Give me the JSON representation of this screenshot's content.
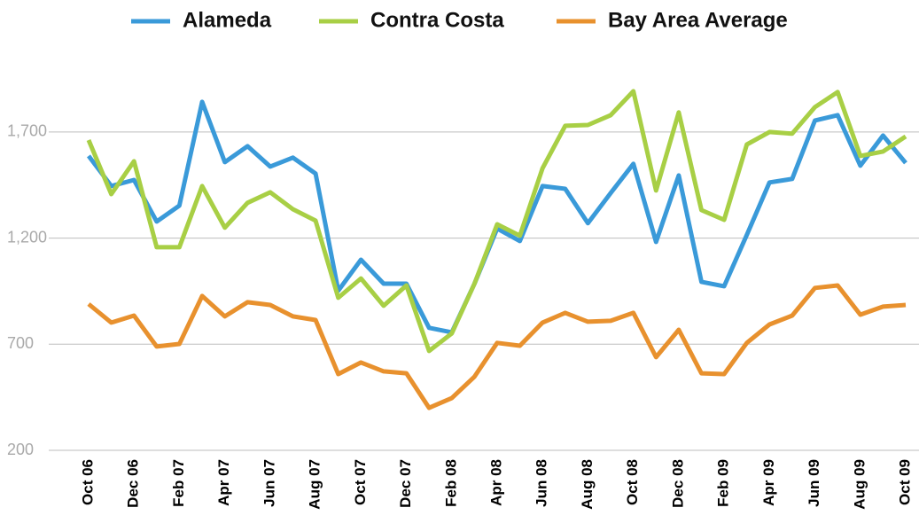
{
  "chart_data": {
    "type": "line",
    "categories": [
      "Oct 06",
      null,
      "Dec 06",
      null,
      "Feb 07",
      null,
      "Apr 07",
      null,
      "Jun 07",
      null,
      "Aug 07",
      null,
      "Oct 07",
      null,
      "Dec 07",
      null,
      "Feb 08",
      null,
      "Apr 08",
      null,
      "Jun 08",
      null,
      "Aug 08",
      null,
      "Oct 08",
      null,
      "Dec 08",
      null,
      "Feb 09",
      null,
      "Apr 09",
      null,
      "Jun 09",
      null,
      "Aug 09",
      null,
      "Oct 09"
    ],
    "series": [
      {
        "name": "Alameda",
        "color": "#3a9ad9",
        "values": [
          1587,
          1445,
          1474,
          1278,
          1353,
          1842,
          1558,
          1633,
          1537,
          1579,
          1504,
          952,
          1098,
          985,
          985,
          777,
          756,
          985,
          1245,
          1186,
          1445,
          1432,
          1270,
          1412,
          1550,
          1182,
          1495,
          994,
          973,
          1215,
          1462,
          1479,
          1754,
          1779,
          1541,
          1683,
          1554
        ]
      },
      {
        "name": "Contra Costa",
        "color": "#a8cf45",
        "values": [
          1662,
          1407,
          1562,
          1157,
          1157,
          1445,
          1249,
          1366,
          1416,
          1336,
          1282,
          919,
          1010,
          881,
          977,
          668,
          751,
          985,
          1265,
          1211,
          1529,
          1729,
          1733,
          1779,
          1892,
          1424,
          1792,
          1332,
          1286,
          1641,
          1700,
          1692,
          1817,
          1888,
          1587,
          1608,
          1679
        ]
      },
      {
        "name": "Bay Area Average",
        "color": "#e8912e",
        "values": [
          889,
          802,
          835,
          689,
          701,
          927,
          831,
          898,
          885,
          831,
          814,
          559,
          614,
          572,
          563,
          400,
          446,
          547,
          706,
          693,
          802,
          848,
          806,
          810,
          848,
          639,
          768,
          563,
          559,
          706,
          793,
          835,
          965,
          977,
          839,
          877,
          885
        ]
      }
    ],
    "ylim": [
      200,
      1950
    ],
    "yticks": [
      200,
      700,
      {
        "value": 1200,
        "label": "1,200"
      },
      {
        "value": 1700,
        "label": "1,700"
      }
    ],
    "grid": true,
    "legend": "top"
  }
}
